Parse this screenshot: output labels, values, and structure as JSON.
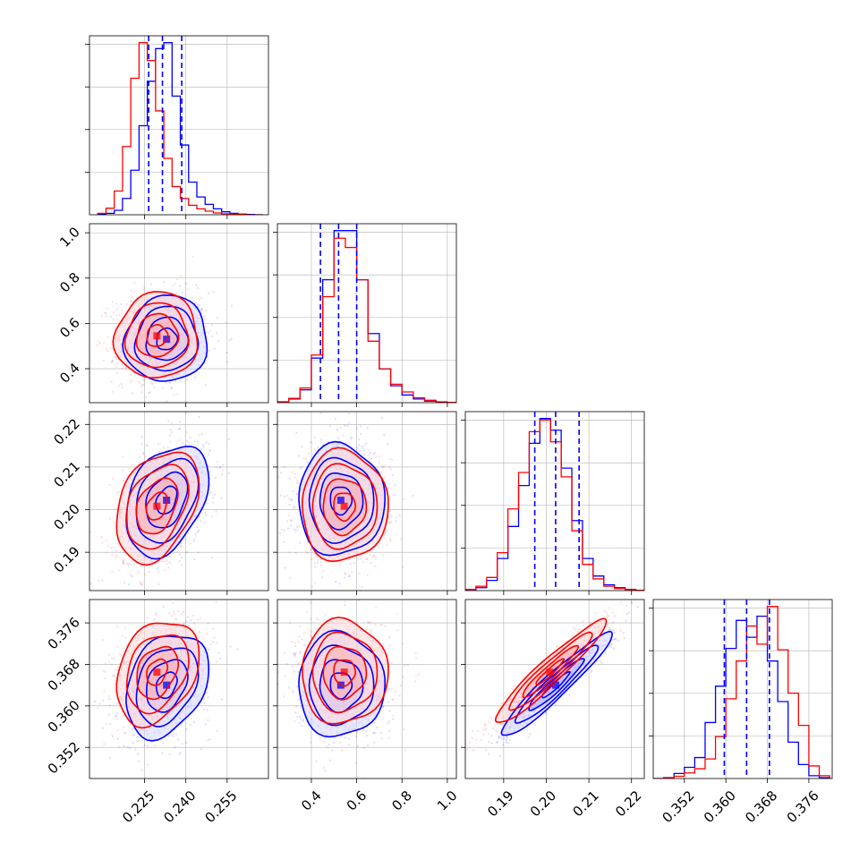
{
  "chart_data": {
    "type": "corner",
    "title": "",
    "parameters": 4,
    "series": [
      {
        "color": "#0000ff",
        "means": [
          0.233,
          0.53,
          0.2022,
          0.364
        ]
      },
      {
        "color": "#ff0000",
        "means": [
          0.2295,
          0.545,
          0.2008,
          0.3665
        ]
      }
    ],
    "quantile_lines": {
      "color": "#0000ff",
      "values": [
        [
          0.2265,
          0.2315,
          0.2385
        ],
        [
          0.44,
          0.52,
          0.6
        ],
        [
          0.1973,
          0.2022,
          0.2077
        ],
        [
          0.3597,
          0.364,
          0.3684
        ]
      ]
    },
    "axes": [
      {
        "range": [
          0.205,
          0.27
        ],
        "ticks": [
          0.225,
          0.24,
          0.255
        ],
        "tick_labels": [
          "0.225",
          "0.240",
          "0.255"
        ]
      },
      {
        "range": [
          0.25,
          1.04
        ],
        "ticks": [
          0.4,
          0.6,
          0.8,
          1.0
        ],
        "tick_labels": [
          "0.4",
          "0.6",
          "0.8",
          "1.0"
        ]
      },
      {
        "range": [
          0.181,
          0.223
        ],
        "ticks": [
          0.19,
          0.2,
          0.21,
          0.22
        ],
        "tick_labels": [
          "0.19",
          "0.20",
          "0.21",
          "0.22"
        ]
      },
      {
        "range": [
          0.346,
          0.3805
        ],
        "ticks": [
          0.352,
          0.36,
          0.368,
          0.376
        ],
        "tick_labels": [
          "0.352",
          "0.360",
          "0.368",
          "0.376"
        ]
      }
    ],
    "histograms": [
      {
        "param": 0,
        "edges": [
          0.208,
          0.211,
          0.214,
          0.217,
          0.22,
          0.223,
          0.226,
          0.229,
          0.232,
          0.235,
          0.238,
          0.241,
          0.244,
          0.247,
          0.25,
          0.253,
          0.256,
          0.259,
          0.262,
          0.265,
          0.268
        ],
        "blue": [
          2,
          5,
          15,
          55,
          150,
          300,
          450,
          560,
          580,
          400,
          235,
          110,
          60,
          35,
          20,
          10,
          5,
          2,
          1,
          0
        ],
        "red": [
          5,
          22,
          80,
          230,
          460,
          580,
          520,
          350,
          190,
          95,
          55,
          32,
          20,
          12,
          6,
          3,
          2,
          1,
          0,
          0
        ]
      },
      {
        "param": 1,
        "edges": [
          0.25,
          0.3,
          0.35,
          0.4,
          0.45,
          0.5,
          0.55,
          0.6,
          0.65,
          0.7,
          0.75,
          0.8,
          0.85,
          0.9,
          0.95,
          1.0,
          1.04
        ],
        "blue": [
          3,
          12,
          42,
          145,
          400,
          560,
          560,
          400,
          225,
          110,
          55,
          25,
          12,
          5,
          2,
          1
        ],
        "red": [
          3,
          14,
          48,
          155,
          345,
          535,
          505,
          400,
          200,
          110,
          60,
          35,
          16,
          8,
          3,
          1
        ]
      },
      {
        "param": 2,
        "edges": [
          0.181,
          0.1835,
          0.186,
          0.1885,
          0.191,
          0.1935,
          0.196,
          0.1985,
          0.201,
          0.2035,
          0.206,
          0.2085,
          0.211,
          0.2135,
          0.216,
          0.2185,
          0.221,
          0.223
        ],
        "blue": [
          3,
          10,
          35,
          110,
          220,
          360,
          505,
          590,
          550,
          420,
          240,
          110,
          50,
          20,
          10,
          4,
          1
        ],
        "red": [
          4,
          15,
          45,
          130,
          280,
          405,
          545,
          585,
          510,
          390,
          205,
          90,
          40,
          15,
          7,
          3,
          1
        ]
      },
      {
        "param": 3,
        "edges": [
          0.346,
          0.348,
          0.35,
          0.352,
          0.354,
          0.356,
          0.358,
          0.36,
          0.362,
          0.364,
          0.366,
          0.368,
          0.37,
          0.372,
          0.374,
          0.376,
          0.378,
          0.38
        ],
        "blue": [
          0,
          3,
          18,
          40,
          75,
          200,
          330,
          465,
          565,
          505,
          580,
          420,
          275,
          130,
          50,
          10,
          3
        ],
        "red": [
          0,
          2,
          8,
          20,
          35,
          70,
          150,
          285,
          420,
          545,
          480,
          615,
          460,
          305,
          190,
          45,
          10
        ]
      }
    ],
    "scatter": [
      {
        "row": 1,
        "col": 0,
        "blue": {
          "mean": [
            0.233,
            0.53
          ],
          "std": [
            0.0075,
            0.095
          ],
          "rho": 0.05
        },
        "red": {
          "mean": [
            0.2295,
            0.545
          ],
          "std": [
            0.0075,
            0.095
          ],
          "rho": 0.05
        }
      },
      {
        "row": 2,
        "col": 0,
        "blue": {
          "mean": [
            0.233,
            0.2022
          ],
          "std": [
            0.0075,
            0.0065
          ],
          "rho": 0.35
        },
        "red": {
          "mean": [
            0.2295,
            0.2008
          ],
          "std": [
            0.0075,
            0.0065
          ],
          "rho": 0.35
        }
      },
      {
        "row": 2,
        "col": 1,
        "blue": {
          "mean": [
            0.53,
            0.2022
          ],
          "std": [
            0.095,
            0.0065
          ],
          "rho": 0.0
        },
        "red": {
          "mean": [
            0.545,
            0.2008
          ],
          "std": [
            0.095,
            0.0065
          ],
          "rho": 0.0
        }
      },
      {
        "row": 3,
        "col": 0,
        "blue": {
          "mean": [
            0.233,
            0.364
          ],
          "std": [
            0.0075,
            0.005
          ],
          "rho": 0.3
        },
        "red": {
          "mean": [
            0.2295,
            0.3665
          ],
          "std": [
            0.0075,
            0.005
          ],
          "rho": 0.3
        }
      },
      {
        "row": 3,
        "col": 1,
        "blue": {
          "mean": [
            0.53,
            0.364
          ],
          "std": [
            0.095,
            0.005
          ],
          "rho": 0.0
        },
        "red": {
          "mean": [
            0.545,
            0.3665
          ],
          "std": [
            0.095,
            0.005
          ],
          "rho": 0.0
        }
      },
      {
        "row": 3,
        "col": 2,
        "blue": {
          "mean": [
            0.2022,
            0.364
          ],
          "std": [
            0.0065,
            0.005
          ],
          "rho": 0.95
        },
        "red": {
          "mean": [
            0.2008,
            0.3665
          ],
          "std": [
            0.0065,
            0.005
          ],
          "rho": 0.95
        }
      }
    ],
    "contour_levels_sigma": [
      0.5,
      1.0,
      1.5,
      2.0
    ],
    "grid": true
  }
}
